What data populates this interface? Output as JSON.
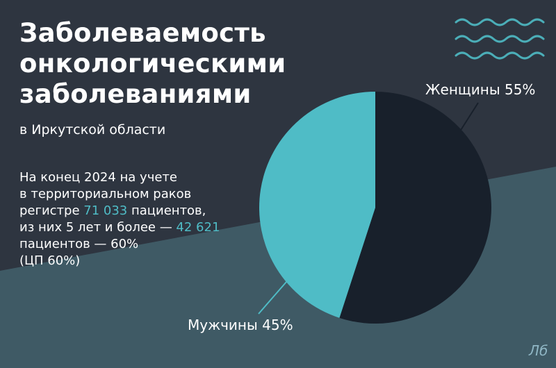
{
  "slide": {
    "title_lines": [
      "Заболеваемость",
      "онкологическими",
      "заболеваниями"
    ],
    "subtitle": "в Иркутской области",
    "description": [
      [
        "На конец 2024 на учете"
      ],
      [
        "в территориальном раков"
      ],
      [
        "регистре ",
        {
          "accent": "71 033"
        },
        " пациентов,"
      ],
      [
        "из них 5 лет и более — ",
        {
          "accent": "42 621"
        }
      ],
      [
        "пациентов — 60%"
      ],
      [
        "(ЦП 60%)"
      ]
    ],
    "logo_text": "Лб"
  },
  "colors": {
    "background_dark": "#2e3540",
    "background_band": "#3f5a65",
    "accent_teal": "#4fbcc6",
    "dark_slice": "#18202b",
    "wave": "#4fbcc6"
  },
  "chart_data": {
    "type": "pie",
    "slices": [
      {
        "label": "Женщины 55%",
        "value": 55,
        "color": "#18202b"
      },
      {
        "label": "Мужчины 45%",
        "value": 45,
        "color": "#4fbcc6"
      }
    ]
  }
}
